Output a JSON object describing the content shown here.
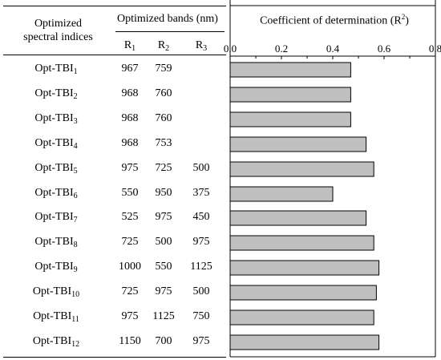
{
  "header": {
    "col1_line1": "Optimized",
    "col1_line2": "spectral indices",
    "col2": "Optimized bands (nm)",
    "r_base": "R",
    "r_subs": [
      "1",
      "2",
      "3"
    ],
    "col3": "Coefficient of determination (R",
    "col3_sup": "2",
    "col3_close": ")"
  },
  "rows": [
    {
      "base": "Opt-TBI",
      "sub": "1",
      "r1": "967",
      "r2": "759",
      "r3": ""
    },
    {
      "base": "Opt-TBI",
      "sub": "2",
      "r1": "968",
      "r2": "760",
      "r3": ""
    },
    {
      "base": "Opt-TBI",
      "sub": "3",
      "r1": "968",
      "r2": "760",
      "r3": ""
    },
    {
      "base": "Opt-TBI",
      "sub": "4",
      "r1": "968",
      "r2": "753",
      "r3": ""
    },
    {
      "base": "Opt-TBI",
      "sub": "5",
      "r1": "975",
      "r2": "725",
      "r3": "500"
    },
    {
      "base": "Opt-TBI",
      "sub": "6",
      "r1": "550",
      "r2": "950",
      "r3": "375"
    },
    {
      "base": "Opt-TBI",
      "sub": "7",
      "r1": "525",
      "r2": "975",
      "r3": "450"
    },
    {
      "base": "Opt-TBI",
      "sub": "8",
      "r1": "725",
      "r2": "500",
      "r3": "975"
    },
    {
      "base": "Opt-TBI",
      "sub": "9",
      "r1": "1000",
      "r2": "550",
      "r3": "1125"
    },
    {
      "base": "Opt-TBI",
      "sub": "10",
      "r1": "725",
      "r2": "975",
      "r3": "500"
    },
    {
      "base": "Opt-TBI",
      "sub": "11",
      "r1": "975",
      "r2": "1125",
      "r3": "750"
    },
    {
      "base": "Opt-TBI",
      "sub": "12",
      "r1": "1150",
      "r2": "700",
      "r3": "975"
    }
  ],
  "chart_data": {
    "type": "bar",
    "orientation": "horizontal",
    "categories": [
      "Opt-TBI1",
      "Opt-TBI2",
      "Opt-TBI3",
      "Opt-TBI4",
      "Opt-TBI5",
      "Opt-TBI6",
      "Opt-TBI7",
      "Opt-TBI8",
      "Opt-TBI9",
      "Opt-TBI10",
      "Opt-TBI11",
      "Opt-TBI12"
    ],
    "values": [
      0.47,
      0.47,
      0.47,
      0.53,
      0.56,
      0.4,
      0.53,
      0.56,
      0.58,
      0.57,
      0.56,
      0.58
    ],
    "title": "Coefficient of determination (R2)",
    "xlim": [
      0,
      0.8
    ],
    "xticks": [
      "0.0",
      "0.2",
      "0.4",
      "0.6",
      "0.8"
    ],
    "grid": false,
    "bar_color": "#c0c0c0"
  }
}
